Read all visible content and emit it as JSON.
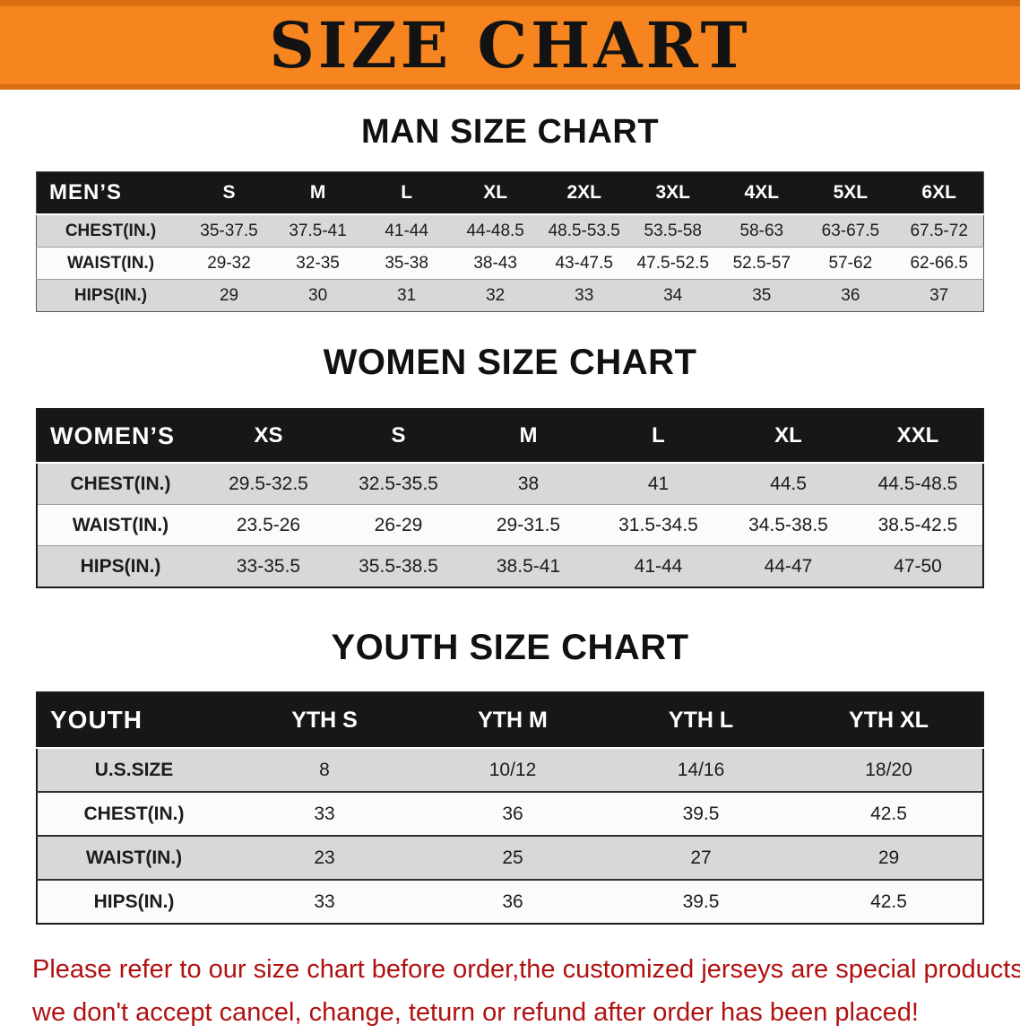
{
  "banner": {
    "title": "SIZE CHART"
  },
  "colors": {
    "banner_orange": "#f6851f",
    "banner_orange_dark": "#d96f12",
    "table_header_black": "#171717",
    "row_gray": "#d8d8d8",
    "row_light": "#fbfbfb",
    "disclaimer_red": "#b01212"
  },
  "men": {
    "heading": "MAN SIZE CHART",
    "table": {
      "header": [
        "MEN’S",
        "S",
        "M",
        "L",
        "XL",
        "2XL",
        "3XL",
        "4XL",
        "5XL",
        "6XL"
      ],
      "rows": [
        {
          "label": "CHEST(IN.)",
          "values": [
            "35-37.5",
            "37.5-41",
            "41-44",
            "44-48.5",
            "48.5-53.5",
            "53.5-58",
            "58-63",
            "63-67.5",
            "67.5-72"
          ]
        },
        {
          "label": "WAIST(IN.)",
          "values": [
            "29-32",
            "32-35",
            "35-38",
            "38-43",
            "43-47.5",
            "47.5-52.5",
            "52.5-57",
            "57-62",
            "62-66.5"
          ]
        },
        {
          "label": "HIPS(IN.)",
          "values": [
            "29",
            "30",
            "31",
            "32",
            "33",
            "34",
            "35",
            "36",
            "37"
          ]
        }
      ]
    }
  },
  "women": {
    "heading": "WOMEN SIZE CHART",
    "table": {
      "header": [
        "WOMEN’S",
        "XS",
        "S",
        "M",
        "L",
        "XL",
        "XXL"
      ],
      "rows": [
        {
          "label": "CHEST(IN.)",
          "values": [
            "29.5-32.5",
            "32.5-35.5",
            "38",
            "41",
            "44.5",
            "44.5-48.5"
          ]
        },
        {
          "label": "WAIST(IN.)",
          "values": [
            "23.5-26",
            "26-29",
            "29-31.5",
            "31.5-34.5",
            "34.5-38.5",
            "38.5-42.5"
          ]
        },
        {
          "label": "HIPS(IN.)",
          "values": [
            "33-35.5",
            "35.5-38.5",
            "38.5-41",
            "41-44",
            "44-47",
            "47-50"
          ]
        }
      ]
    }
  },
  "youth": {
    "heading": "YOUTH SIZE CHART",
    "table": {
      "header": [
        "YOUTH",
        "YTH S",
        "YTH M",
        "YTH L",
        "YTH XL"
      ],
      "rows": [
        {
          "label": "U.S.SIZE",
          "values": [
            "8",
            "10/12",
            "14/16",
            "18/20"
          ]
        },
        {
          "label": "CHEST(IN.)",
          "values": [
            "33",
            "36",
            "39.5",
            "42.5"
          ]
        },
        {
          "label": "WAIST(IN.)",
          "values": [
            "23",
            "25",
            "27",
            "29"
          ]
        },
        {
          "label": "HIPS(IN.)",
          "values": [
            "33",
            "36",
            "39.5",
            "42.5"
          ]
        }
      ]
    }
  },
  "disclaimer": {
    "line1": "Please refer to our size chart before order,the customized jerseys are special products,",
    "line2": "we don't accept cancel, change, teturn or refund after order has been placed!"
  }
}
